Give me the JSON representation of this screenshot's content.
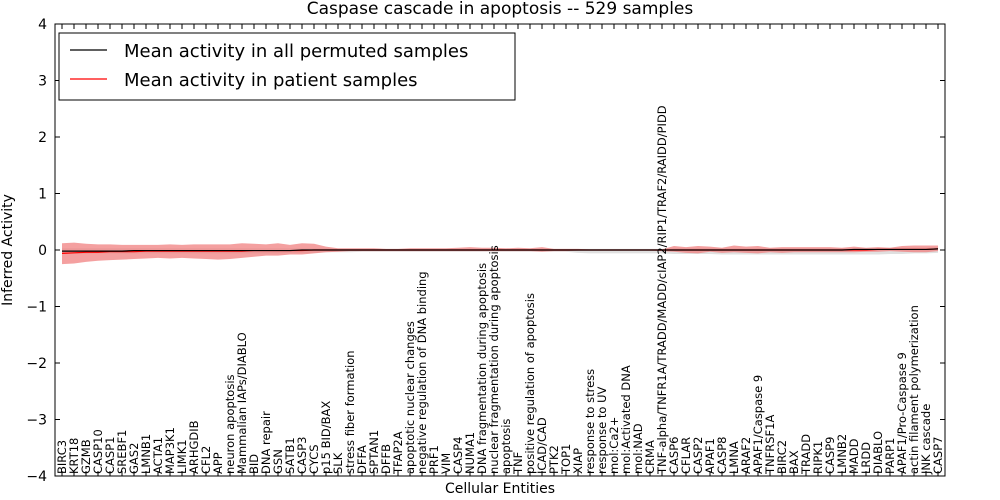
{
  "chart_data": {
    "type": "line",
    "title": "Caspase cascade in apoptosis -- 529 samples",
    "xlabel": "Cellular Entities",
    "ylabel": "Inferred Activity",
    "ylim": [
      -4,
      4
    ],
    "yticks": [
      -4,
      -3,
      -2,
      -1,
      0,
      1,
      2,
      3,
      4
    ],
    "ytick_labels": [
      "−4",
      "−3",
      "−2",
      "−1",
      "0",
      "1",
      "2",
      "3",
      "4"
    ],
    "legend": {
      "placement": "top-left",
      "entries": [
        {
          "label": "Mean activity in all permuted samples",
          "color": "#000000"
        },
        {
          "label": "Mean activity in patient samples",
          "color": "#ff0000"
        }
      ]
    },
    "colors": {
      "patient_line": "#ff0000",
      "patient_band": "#f08080",
      "permuted_line": "#000000",
      "permuted_band": "#bbbbbb"
    },
    "categories": [
      "BIRC3",
      "KRT18",
      "GZMB",
      "CASP10",
      "CASP1",
      "SREBF1",
      "GAS2",
      "LMNB1",
      "ACTA1",
      "MAP3K1",
      "LIMK1",
      "ARHGDIB",
      "CFL2",
      "APP",
      "neuron apoptosis",
      "Mammalian IAPs/DIABLO",
      "BID",
      "DNA repair",
      "GSN",
      "SATB1",
      "CASP3",
      "CYCS",
      "p15 BID/BAX",
      "SLK",
      "stress fiber formation",
      "DFFA",
      "SPTAN1",
      "DFFB",
      "TFAP2A",
      "apoptotic nuclear changes",
      "negative regulation of DNA binding",
      "PRF1",
      "VIM",
      "CASP4",
      "NUMA1",
      "DNA fragmentation during apoptosis",
      "nuclear fragmentation during apoptosis",
      "apoptosis",
      "TNF",
      "positive regulation of apoptosis",
      "ICAD/CAD",
      "PTK2",
      "TOP1",
      "XIAP",
      "response to stress",
      "response to UV",
      "mol:Ca2+",
      "mol:Activated DNA",
      "mol:NAD",
      "CRMA",
      "TNF-alpha/TNFR1A/TRADD/MADD/cIAP2/RIP1/TRAF2/RAIDD/PIDD",
      "CASP6",
      "CFLAR",
      "CASP2",
      "APAF1",
      "CASP8",
      "LMNA",
      "ARAF2",
      "APAF1/Caspase 9",
      "TNFRSF1A",
      "BIRC2",
      "BAX",
      "TRADD",
      "RIPK1",
      "CASP9",
      "LMNB2",
      "MADD",
      "LRDD",
      "DIABLO",
      "PARP1",
      "APAF1/Pro-Caspase 9",
      "actin filament polymerization",
      "JNK cascade",
      "CASP7"
    ],
    "series": [
      {
        "name": "Mean activity in patient samples",
        "values": [
          -0.06,
          -0.05,
          -0.04,
          -0.04,
          -0.03,
          -0.03,
          -0.03,
          -0.02,
          -0.02,
          -0.02,
          -0.02,
          -0.02,
          -0.02,
          -0.02,
          -0.02,
          -0.02,
          -0.01,
          -0.01,
          -0.01,
          -0.01,
          -0.01,
          0,
          0,
          0,
          0,
          0,
          0,
          0,
          0,
          0,
          0,
          0,
          0,
          0,
          0,
          0,
          0,
          0,
          0,
          0,
          0,
          0,
          0,
          0,
          0,
          0,
          0,
          0,
          0,
          0,
          0,
          0,
          0,
          0,
          0,
          0,
          0,
          0,
          0,
          0,
          0,
          0,
          0,
          0,
          0,
          0,
          0,
          0,
          0.01,
          0.01,
          0.01,
          0.01,
          0.01,
          0.02
        ],
        "upper": [
          0.12,
          0.13,
          0.11,
          0.1,
          0.1,
          0.09,
          0.09,
          0.09,
          0.09,
          0.1,
          0.09,
          0.1,
          0.1,
          0.1,
          0.1,
          0.12,
          0.11,
          0.1,
          0.12,
          0.09,
          0.12,
          0.11,
          0.06,
          0.03,
          0.03,
          0.03,
          0.03,
          0.02,
          0.02,
          0.03,
          0.03,
          0.03,
          0.03,
          0.04,
          0.05,
          0.04,
          0.04,
          0.03,
          0.04,
          0.03,
          0.05,
          0.02,
          0.02,
          0.02,
          0.01,
          0.01,
          0.01,
          0.01,
          0.01,
          0.01,
          0.01,
          0.07,
          0.05,
          0.07,
          0.06,
          0.04,
          0.08,
          0.06,
          0.07,
          0.04,
          0.05,
          0.05,
          0.05,
          0.05,
          0.05,
          0.04,
          0.06,
          0.04,
          0.05,
          0.04,
          0.07,
          0.08,
          0.08,
          0.08
        ],
        "lower": [
          -0.25,
          -0.24,
          -0.21,
          -0.19,
          -0.18,
          -0.17,
          -0.16,
          -0.15,
          -0.14,
          -0.15,
          -0.14,
          -0.15,
          -0.16,
          -0.17,
          -0.16,
          -0.14,
          -0.12,
          -0.1,
          -0.1,
          -0.08,
          -0.08,
          -0.06,
          -0.04,
          -0.03,
          -0.02,
          -0.02,
          -0.02,
          -0.02,
          -0.02,
          -0.02,
          -0.02,
          -0.02,
          -0.02,
          -0.02,
          -0.02,
          -0.02,
          -0.02,
          -0.02,
          -0.02,
          -0.02,
          -0.03,
          -0.02,
          -0.02,
          -0.01,
          -0.01,
          -0.01,
          -0.01,
          -0.01,
          -0.01,
          -0.01,
          -0.02,
          -0.03,
          -0.05,
          -0.06,
          -0.03,
          -0.05,
          -0.04,
          -0.05,
          -0.06,
          -0.04,
          -0.05,
          -0.04,
          -0.04,
          -0.04,
          -0.04,
          -0.04,
          -0.04,
          -0.03,
          -0.03,
          -0.02,
          -0.03,
          -0.04,
          -0.04,
          -0.02
        ]
      },
      {
        "name": "Mean activity in all permuted samples",
        "values": [
          -0.02,
          -0.02,
          -0.02,
          -0.02,
          -0.02,
          -0.02,
          -0.01,
          -0.01,
          -0.01,
          -0.01,
          -0.01,
          -0.01,
          -0.01,
          -0.01,
          -0.01,
          -0.01,
          -0.01,
          -0.01,
          -0.01,
          -0.01,
          0,
          0,
          0,
          0,
          0,
          0,
          0,
          0,
          0,
          0,
          0,
          0,
          0,
          0,
          0,
          0,
          0,
          0,
          0,
          0,
          0,
          0,
          0,
          0,
          0,
          0,
          0,
          0,
          0,
          0,
          0,
          0,
          0,
          0,
          0,
          0,
          0,
          0,
          0,
          0,
          0,
          0,
          0,
          0,
          0,
          0,
          0.01,
          0.01,
          0.01,
          0.01,
          0.01,
          0.01,
          0.01,
          0.02
        ],
        "upper": [
          0.03,
          0.03,
          0.03,
          0.03,
          0.03,
          0.03,
          0.03,
          0.03,
          0.03,
          0.03,
          0.03,
          0.03,
          0.03,
          0.03,
          0.03,
          0.03,
          0.03,
          0.03,
          0.03,
          0.03,
          0.03,
          0.03,
          0.03,
          0.02,
          0.02,
          0.02,
          0.02,
          0.02,
          0.02,
          0.02,
          0.02,
          0.02,
          0.02,
          0.02,
          0.02,
          0.02,
          0.02,
          0.02,
          0.02,
          0.02,
          0.02,
          0.02,
          0.02,
          0.02,
          0.02,
          0.02,
          0.02,
          0.02,
          0.02,
          0.02,
          0.02,
          0.03,
          0.03,
          0.03,
          0.03,
          0.03,
          0.03,
          0.03,
          0.03,
          0.03,
          0.03,
          0.03,
          0.03,
          0.03,
          0.03,
          0.03,
          0.03,
          0.03,
          0.03,
          0.04,
          0.04,
          0.04,
          0.04,
          0.05
        ],
        "lower": [
          -0.07,
          -0.07,
          -0.07,
          -0.06,
          -0.06,
          -0.06,
          -0.06,
          -0.06,
          -0.06,
          -0.06,
          -0.06,
          -0.06,
          -0.06,
          -0.06,
          -0.06,
          -0.06,
          -0.06,
          -0.06,
          -0.06,
          -0.05,
          -0.05,
          -0.05,
          -0.04,
          -0.04,
          -0.04,
          -0.03,
          -0.03,
          -0.03,
          -0.03,
          -0.03,
          -0.03,
          -0.03,
          -0.03,
          -0.03,
          -0.03,
          -0.03,
          -0.03,
          -0.03,
          -0.03,
          -0.03,
          -0.03,
          -0.03,
          -0.03,
          -0.05,
          -0.06,
          -0.06,
          -0.06,
          -0.06,
          -0.06,
          -0.06,
          -0.06,
          -0.07,
          -0.07,
          -0.07,
          -0.07,
          -0.08,
          -0.08,
          -0.08,
          -0.08,
          -0.08,
          -0.08,
          -0.08,
          -0.08,
          -0.08,
          -0.08,
          -0.08,
          -0.08,
          -0.08,
          -0.08,
          -0.07,
          -0.07,
          -0.06,
          -0.06,
          -0.05
        ]
      }
    ]
  }
}
